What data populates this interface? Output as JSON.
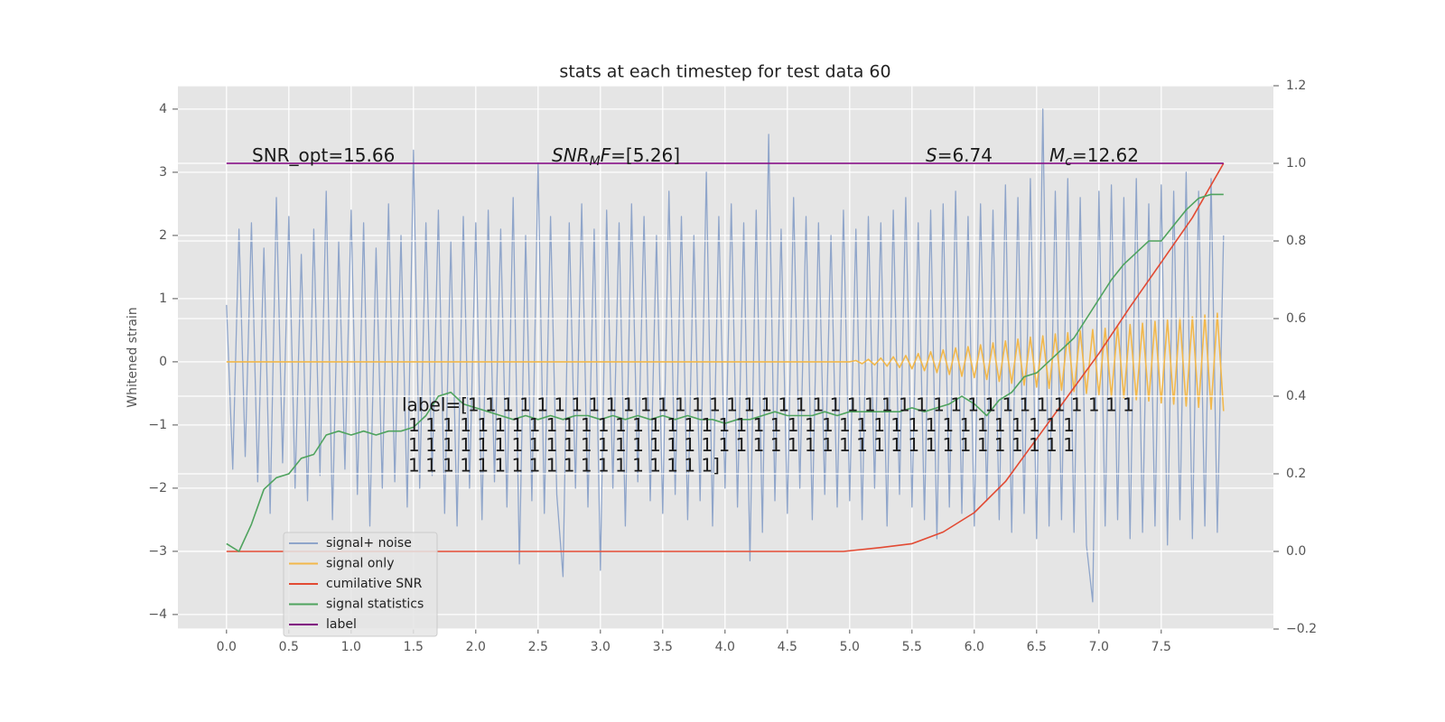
{
  "chart_data": {
    "type": "line",
    "title": "stats at each timestep for test data 60",
    "ylabel": "Whitened strain",
    "xlim": [
      -0.39,
      8.4
    ],
    "ylim": [
      -4.23,
      4.37
    ],
    "y2lim": [
      -0.2,
      1.2
    ],
    "xticks": [
      {
        "value": 0,
        "label": "0.0"
      },
      0.5,
      {
        "value": 1,
        "label": "1.0"
      },
      1.5,
      {
        "value": 2,
        "label": "2.0"
      },
      2.5,
      {
        "value": 3,
        "label": "3.0"
      },
      3.5,
      {
        "value": 4,
        "label": "4.0"
      },
      4.5,
      {
        "value": 5,
        "label": "5.0"
      },
      5.5,
      {
        "value": 6,
        "label": "6.0"
      },
      6.5,
      {
        "value": 7,
        "label": "7.0"
      },
      7.5
    ],
    "yticks": [
      {
        "value": -4,
        "label": "−4"
      },
      {
        "value": -3,
        "label": "−3"
      },
      {
        "value": -2,
        "label": "−2"
      },
      {
        "value": -1,
        "label": "−1"
      },
      0,
      1,
      2,
      3,
      4
    ],
    "y2ticks": [
      {
        "value": -0.2,
        "label": "−0.2"
      },
      {
        "value": 0,
        "label": "0.0"
      },
      0.2,
      0.4,
      0.6,
      0.8,
      {
        "value": 1,
        "label": "1.0"
      },
      1.2
    ],
    "grid": true,
    "legend": "lower left",
    "series": [
      {
        "name": "signal+ noise",
        "color": "#8fa5ca",
        "axis": "y",
        "x": [
          0,
          0.05,
          0.1,
          0.15,
          0.2,
          0.25,
          0.3,
          0.35,
          0.4,
          0.45,
          0.5,
          0.55,
          0.6,
          0.65,
          0.7,
          0.75,
          0.8,
          0.85,
          0.9,
          0.95,
          1,
          1.05,
          1.1,
          1.15,
          1.2,
          1.25,
          1.3,
          1.35,
          1.4,
          1.45,
          1.5,
          1.55,
          1.6,
          1.65,
          1.7,
          1.75,
          1.8,
          1.85,
          1.9,
          1.95,
          2,
          2.05,
          2.1,
          2.15,
          2.2,
          2.25,
          2.3,
          2.35,
          2.4,
          2.45,
          2.5,
          2.55,
          2.6,
          2.65,
          2.7,
          2.75,
          2.8,
          2.85,
          2.9,
          2.95,
          3,
          3.05,
          3.1,
          3.15,
          3.2,
          3.25,
          3.3,
          3.35,
          3.4,
          3.45,
          3.5,
          3.55,
          3.6,
          3.65,
          3.7,
          3.75,
          3.8,
          3.85,
          3.9,
          3.95,
          4,
          4.05,
          4.1,
          4.15,
          4.2,
          4.25,
          4.3,
          4.35,
          4.4,
          4.45,
          4.5,
          4.55,
          4.6,
          4.65,
          4.7,
          4.75,
          4.8,
          4.85,
          4.9,
          4.95,
          5,
          5.05,
          5.1,
          5.15,
          5.2,
          5.25,
          5.3,
          5.35,
          5.4,
          5.45,
          5.5,
          5.55,
          5.6,
          5.65,
          5.7,
          5.75,
          5.8,
          5.85,
          5.9,
          5.95,
          6,
          6.05,
          6.1,
          6.15,
          6.2,
          6.25,
          6.3,
          6.35,
          6.4,
          6.45,
          6.5,
          6.55,
          6.6,
          6.65,
          6.7,
          6.75,
          6.8,
          6.85,
          6.9,
          6.95,
          7,
          7.05,
          7.1,
          7.15,
          7.2,
          7.25,
          7.3,
          7.35,
          7.4,
          7.45,
          7.5,
          7.55,
          7.6,
          7.65,
          7.7,
          7.75,
          7.8,
          7.85,
          7.9,
          7.95,
          8
        ],
        "values": [
          0.9,
          -1.7,
          2.1,
          -1.5,
          2.2,
          -1.9,
          1.8,
          -2.4,
          2.6,
          -1.6,
          2.3,
          -2.0,
          1.7,
          -2.2,
          2.1,
          -1.8,
          2.7,
          -2.5,
          1.9,
          -1.7,
          2.4,
          -2.1,
          2.2,
          -2.6,
          1.8,
          -2.0,
          2.5,
          -1.9,
          2.0,
          -2.3,
          3.35,
          -2.0,
          2.2,
          -1.8,
          2.4,
          -2.4,
          1.9,
          -2.6,
          2.3,
          -2.0,
          2.2,
          -2.5,
          2.4,
          -1.9,
          2.1,
          -2.3,
          2.6,
          -3.2,
          2.0,
          -2.2,
          3.15,
          -2.4,
          2.3,
          -2.1,
          -3.4,
          2.2,
          -2.0,
          2.5,
          -2.3,
          2.1,
          -3.3,
          2.4,
          -2.0,
          2.2,
          -2.6,
          2.5,
          -1.9,
          2.3,
          -2.2,
          2.0,
          -2.4,
          2.7,
          -2.1,
          2.3,
          -2.5,
          2.0,
          -2.2,
          3.0,
          -2.6,
          2.3,
          -2.0,
          2.5,
          -2.3,
          2.2,
          -3.15,
          2.4,
          -2.7,
          3.6,
          -2.2,
          2.1,
          -2.4,
          2.6,
          -2.0,
          2.3,
          -2.5,
          2.2,
          -2.1,
          2.0,
          -2.3,
          2.4,
          -2.2,
          2.1,
          -2.5,
          2.3,
          -2.0,
          2.2,
          -2.6,
          2.4,
          -2.1,
          2.6,
          -2.3,
          2.2,
          -2.5,
          2.4,
          -2.8,
          2.5,
          -2.3,
          2.7,
          -2.4,
          2.3,
          -2.6,
          2.5,
          -2.2,
          2.4,
          -2.5,
          2.8,
          -2.7,
          2.6,
          -2.4,
          2.9,
          -2.8,
          4.0,
          -2.6,
          2.7,
          -2.5,
          2.9,
          -2.7,
          2.6,
          -2.9,
          -3.8,
          2.7,
          -2.6,
          2.8,
          -2.5,
          2.6,
          -2.8,
          2.9,
          -2.7,
          2.5,
          -2.6,
          2.8,
          -2.9,
          2.7,
          -2.5,
          3.0,
          -2.8,
          2.7,
          -2.6,
          2.9,
          -2.7,
          2.0
        ]
      },
      {
        "name": "signal only",
        "color": "#f2b84b",
        "axis": "y",
        "x": [
          0,
          1,
          2,
          3,
          4,
          5,
          5.05,
          5.1,
          5.15,
          5.2,
          5.25,
          5.3,
          5.35,
          5.4,
          5.45,
          5.5,
          5.55,
          5.6,
          5.65,
          5.7,
          5.75,
          5.8,
          5.85,
          5.9,
          5.95,
          6,
          6.05,
          6.1,
          6.15,
          6.2,
          6.25,
          6.3,
          6.35,
          6.4,
          6.45,
          6.5,
          6.55,
          6.6,
          6.65,
          6.7,
          6.75,
          6.8,
          6.85,
          6.9,
          6.95,
          7,
          7.05,
          7.1,
          7.15,
          7.2,
          7.25,
          7.3,
          7.35,
          7.4,
          7.45,
          7.5,
          7.55,
          7.6,
          7.65,
          7.7,
          7.75,
          7.8,
          7.85,
          7.9,
          7.95,
          8
        ],
        "values": [
          0,
          0,
          0,
          0,
          0,
          0,
          0.02,
          -0.03,
          0.04,
          -0.05,
          0.06,
          -0.07,
          0.08,
          -0.09,
          0.1,
          -0.11,
          0.13,
          -0.14,
          0.16,
          -0.17,
          0.19,
          -0.2,
          0.22,
          -0.23,
          0.24,
          -0.25,
          0.27,
          -0.28,
          0.3,
          -0.31,
          0.33,
          -0.34,
          0.36,
          -0.37,
          0.39,
          -0.4,
          0.41,
          -0.42,
          0.44,
          -0.45,
          0.46,
          -0.47,
          0.49,
          -0.5,
          0.51,
          -0.52,
          0.53,
          -0.55,
          0.56,
          -0.57,
          0.59,
          -0.6,
          0.61,
          -0.62,
          0.64,
          -0.65,
          0.66,
          -0.67,
          0.69,
          -0.7,
          0.71,
          -0.72,
          0.74,
          -0.75,
          0.77,
          -0.78
        ]
      },
      {
        "name": "cumilative SNR",
        "color": "#e24a33",
        "axis": "y2",
        "x": [
          0,
          4.95,
          5.25,
          5.5,
          5.75,
          6,
          6.25,
          6.5,
          6.75,
          7,
          7.25,
          7.5,
          7.75,
          8
        ],
        "values": [
          0,
          0,
          0.01,
          0.02,
          0.05,
          0.1,
          0.18,
          0.29,
          0.4,
          0.51,
          0.63,
          0.745,
          0.86,
          1.0
        ]
      },
      {
        "name": "signal statistics",
        "color": "#4fa35e",
        "axis": "y2",
        "x": [
          0,
          0.1,
          0.2,
          0.3,
          0.4,
          0.5,
          0.6,
          0.7,
          0.8,
          0.9,
          1,
          1.1,
          1.2,
          1.3,
          1.4,
          1.5,
          1.6,
          1.7,
          1.8,
          1.9,
          2,
          2.1,
          2.2,
          2.3,
          2.4,
          2.5,
          2.6,
          2.7,
          2.8,
          2.9,
          3,
          3.1,
          3.2,
          3.3,
          3.4,
          3.5,
          3.6,
          3.7,
          3.8,
          3.9,
          4,
          4.1,
          4.2,
          4.3,
          4.4,
          4.5,
          4.6,
          4.7,
          4.8,
          4.9,
          5,
          5.1,
          5.2,
          5.3,
          5.4,
          5.5,
          5.6,
          5.7,
          5.8,
          5.9,
          6,
          6.1,
          6.2,
          6.3,
          6.4,
          6.5,
          6.6,
          6.7,
          6.8,
          6.9,
          7,
          7.1,
          7.2,
          7.3,
          7.4,
          7.5,
          7.6,
          7.7,
          7.8,
          7.9,
          8
        ],
        "values": [
          0.02,
          0.0,
          0.07,
          0.16,
          0.19,
          0.2,
          0.24,
          0.25,
          0.3,
          0.31,
          0.3,
          0.31,
          0.3,
          0.31,
          0.31,
          0.32,
          0.35,
          0.4,
          0.41,
          0.38,
          0.37,
          0.36,
          0.35,
          0.34,
          0.35,
          0.34,
          0.35,
          0.34,
          0.35,
          0.35,
          0.34,
          0.35,
          0.34,
          0.35,
          0.34,
          0.35,
          0.34,
          0.35,
          0.34,
          0.34,
          0.33,
          0.34,
          0.34,
          0.35,
          0.36,
          0.35,
          0.35,
          0.35,
          0.36,
          0.35,
          0.36,
          0.36,
          0.36,
          0.36,
          0.36,
          0.37,
          0.36,
          0.37,
          0.38,
          0.4,
          0.38,
          0.35,
          0.39,
          0.41,
          0.45,
          0.46,
          0.49,
          0.52,
          0.55,
          0.6,
          0.65,
          0.7,
          0.74,
          0.77,
          0.8,
          0.8,
          0.84,
          0.88,
          0.91,
          0.92,
          0.92
        ]
      },
      {
        "name": "label",
        "color": "#800080",
        "axis": "y2",
        "x": [
          0,
          8
        ],
        "values": [
          1,
          1
        ]
      }
    ],
    "annotations": [
      {
        "parts": [
          {
            "text": "SNR_opt=15.66"
          }
        ]
      },
      {
        "parts": [
          {
            "text": "SNR",
            "style": "italic"
          },
          {
            "text": "M",
            "style": "sub"
          },
          {
            "text": "F",
            "style": "italic"
          },
          {
            "text": "=[5.26]"
          }
        ]
      },
      {
        "parts": [
          {
            "text": "S",
            "style": "italic"
          },
          {
            "text": "=6.74"
          }
        ]
      },
      {
        "parts": [
          {
            "text": "M",
            "style": "italic"
          },
          {
            "text": "c",
            "style": "sub"
          },
          {
            "text": "=12.62"
          }
        ]
      }
    ],
    "label_text": [
      "label=[1 1 1 1 1 1 1 1 1 1 1 1 1 1 1 1 1 1 1 1 1 1 1 1 1 1 1 1 1 1 1 1 1 1 1 1 1 1 1",
      "1 1 1 1 1 1 1 1 1 1 1 1 1 1 1 1 1 1 1 1 1 1 1 1 1 1 1 1 1 1 1 1 1 1 1 1 1 1 1",
      "1 1 1 1 1 1 1 1 1 1 1 1 1 1 1 1 1 1 1 1 1 1 1 1 1 1 1 1 1 1 1 1 1 1 1 1 1 1 1",
      "1 1 1 1 1 1 1 1 1 1 1 1 1 1 1 1 1 1]"
    ]
  }
}
